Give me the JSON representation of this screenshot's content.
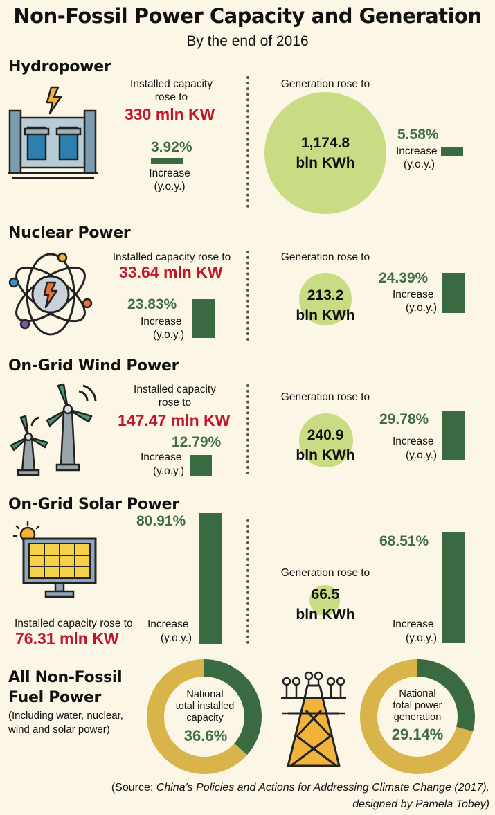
{
  "title": "Non-Fossil Power Capacity and Generation",
  "subtitle": "By the end of 2016",
  "colors": {
    "background": "#fbf6e6",
    "red": "#c0162c",
    "green": "#3a6a42",
    "bubble": "#c9dc83",
    "gold": "#d9b44a"
  },
  "sections": {
    "hydro": {
      "title": "Hydropower",
      "capacity_label_1": "Installed capacity",
      "capacity_label_2": "rose to",
      "capacity_value": "330 mln KW",
      "capacity_increase": "3.92%",
      "increase_label": "Increase",
      "yoy_label": "(y.o.y.)",
      "generation_label": "Generation rose to",
      "generation_value_1": "1,174.8",
      "generation_value_2": "bln KWh",
      "generation_increase": "5.58%",
      "icon": "hydropower-dam-icon"
    },
    "nuclear": {
      "title": "Nuclear Power",
      "capacity_label": "Installed capacity rose to",
      "capacity_value": "33.64 mln KW",
      "capacity_increase": "23.83%",
      "increase_label": "Increase",
      "yoy_label": "(y.o.y.)",
      "generation_label": "Generation rose to",
      "generation_value_1": "213.2",
      "generation_value_2": "bln KWh",
      "generation_increase": "24.39%",
      "icon": "atom-icon"
    },
    "wind": {
      "title": "On-Grid Wind Power",
      "capacity_label_1": "Installed capacity",
      "capacity_label_2": "rose to",
      "capacity_value": "147.47 mln KW",
      "capacity_increase": "12.79%",
      "increase_label": "Increase",
      "yoy_label": "(y.o.y.)",
      "generation_label": "Generation rose to",
      "generation_value_1": "240.9",
      "generation_value_2": "bln KWh",
      "generation_increase": "29.78%",
      "icon": "wind-turbine-icon"
    },
    "solar": {
      "title": "On-Grid Solar Power",
      "capacity_label": "Installed capacity rose to",
      "capacity_value": "76.31 mln KW",
      "capacity_increase": "80.91%",
      "increase_label": "Increase",
      "yoy_label": "(y.o.y.)",
      "generation_label": "Generation rose to",
      "generation_value_1": "66.5",
      "generation_value_2": "bln KWh",
      "generation_increase": "68.51%",
      "icon": "solar-panel-icon"
    },
    "all": {
      "title_1": "All Non-Fossil",
      "title_2": "Fuel Power",
      "note_1": "(Including water, nuclear,",
      "note_2": "wind and solar power)",
      "capacity_label_1": "National",
      "capacity_label_2": "total installed",
      "capacity_label_3": "capacity",
      "capacity_share": "36.6%",
      "generation_label_1": "National",
      "generation_label_2": "total power",
      "generation_label_3": "generation",
      "generation_share": "29.14%",
      "icon": "transmission-tower-icon"
    }
  },
  "source": {
    "prefix": "(Source: ",
    "title": "China's Policies and Actions for Addressing Climate Change (2017),",
    "designer": "designed by Pamela Tobey)"
  },
  "chart_data": [
    {
      "type": "bar",
      "categories": [
        "Hydropower",
        "Nuclear Power",
        "On-Grid Wind Power",
        "On-Grid Solar Power"
      ],
      "series": [
        {
          "name": "Installed capacity",
          "values": [
            330,
            33.64,
            147.47,
            76.31
          ],
          "unit": "mln KW",
          "increase_yoy_pct": [
            3.92,
            23.83,
            12.79,
            80.91
          ]
        },
        {
          "name": "Generation",
          "values": [
            1174.8,
            213.2,
            240.9,
            66.5
          ],
          "unit": "bln KWh",
          "increase_yoy_pct": [
            5.58,
            24.39,
            29.78,
            68.51
          ]
        }
      ]
    },
    {
      "type": "pie",
      "labels": [
        "National total installed capacity",
        "National total power generation"
      ],
      "values": [
        36.6,
        29.14
      ],
      "unit": "%"
    }
  ]
}
